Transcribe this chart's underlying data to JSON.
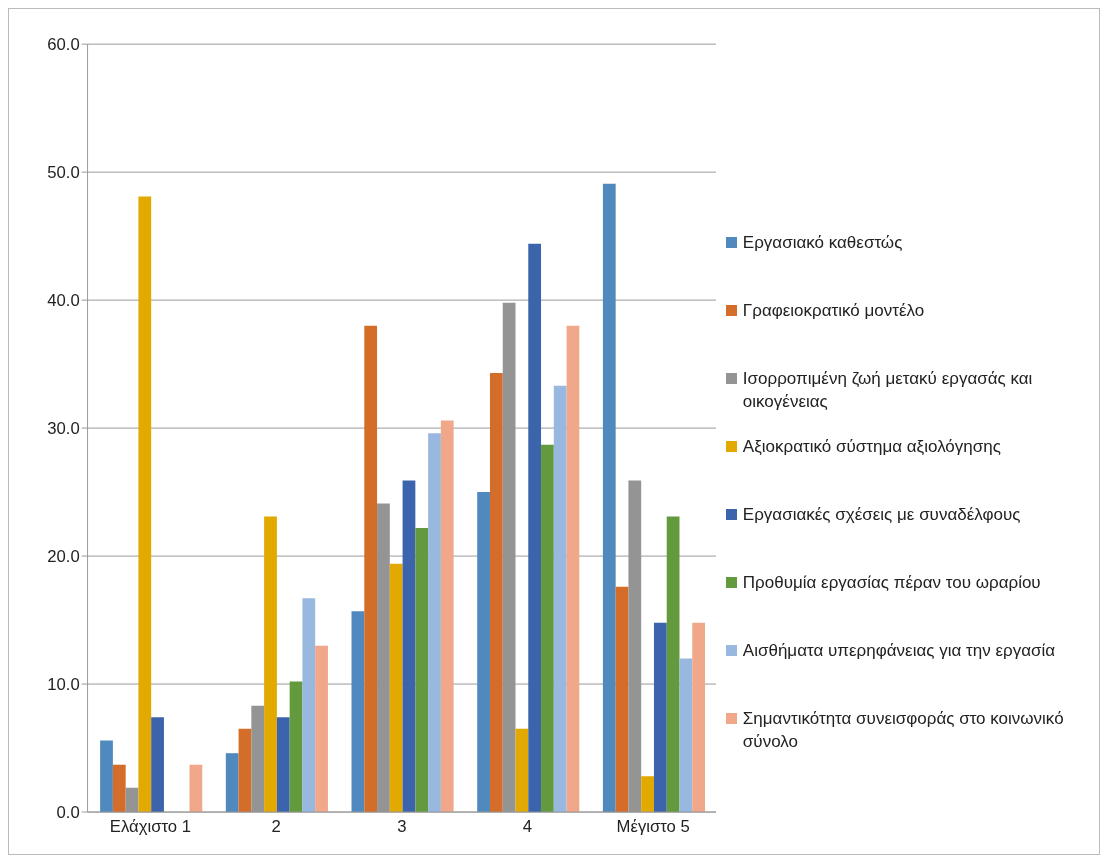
{
  "chart_data": {
    "type": "bar",
    "categories": [
      "Ελάχιστο 1",
      "2",
      "3",
      "4",
      "Μέγιστο 5"
    ],
    "series": [
      {
        "name": "Εργασιακό καθεστώς",
        "color": "#4f89bd",
        "values": [
          5.6,
          4.6,
          15.7,
          25.0,
          49.1
        ]
      },
      {
        "name": "Γραφειοκρατικό μοντέλο",
        "color": "#d46d29",
        "values": [
          3.7,
          6.5,
          38.0,
          34.3,
          17.6
        ]
      },
      {
        "name": "Ισορροπιμένη ζωή μετακύ εργασάς και οικογένειας",
        "color": "#949494",
        "values": [
          1.9,
          8.3,
          24.1,
          39.8,
          25.9
        ]
      },
      {
        "name": "Αξιοκρατικό σύστημα αξιολόγησης",
        "color": "#e2a900",
        "values": [
          48.1,
          23.1,
          19.4,
          6.5,
          2.8
        ]
      },
      {
        "name": "Εργασιακές σχέσεις με συναδέλφους",
        "color": "#3c64ad",
        "values": [
          7.4,
          7.4,
          25.9,
          44.4,
          14.8
        ]
      },
      {
        "name": "Προθυμία εργασίας πέραν του ωραρίου",
        "color": "#639a3e",
        "values": [
          0,
          10.2,
          22.2,
          28.7,
          23.1
        ]
      },
      {
        "name": "Αισθήματα υπερηφάνειας για την εργασία",
        "color": "#98b8e0",
        "values": [
          0,
          16.7,
          29.6,
          33.3,
          12.0
        ]
      },
      {
        "name": "Σημαντικότητα συνεισφοράς στο κοινωνικό σύνολο",
        "color": "#f0a78a",
        "values": [
          3.7,
          13.0,
          30.6,
          38.0,
          14.8
        ]
      }
    ],
    "ylim": [
      0,
      60
    ],
    "yticks": [
      {
        "value": 0,
        "label": "0.0"
      },
      {
        "value": 10,
        "label": "10.0"
      },
      {
        "value": 20,
        "label": "20.0"
      },
      {
        "value": 30,
        "label": "30.0"
      },
      {
        "value": 40,
        "label": "40.0"
      },
      {
        "value": 50,
        "label": "50.0"
      },
      {
        "value": 60,
        "label": "60.0"
      }
    ],
    "grid": "y",
    "legend": "right"
  }
}
